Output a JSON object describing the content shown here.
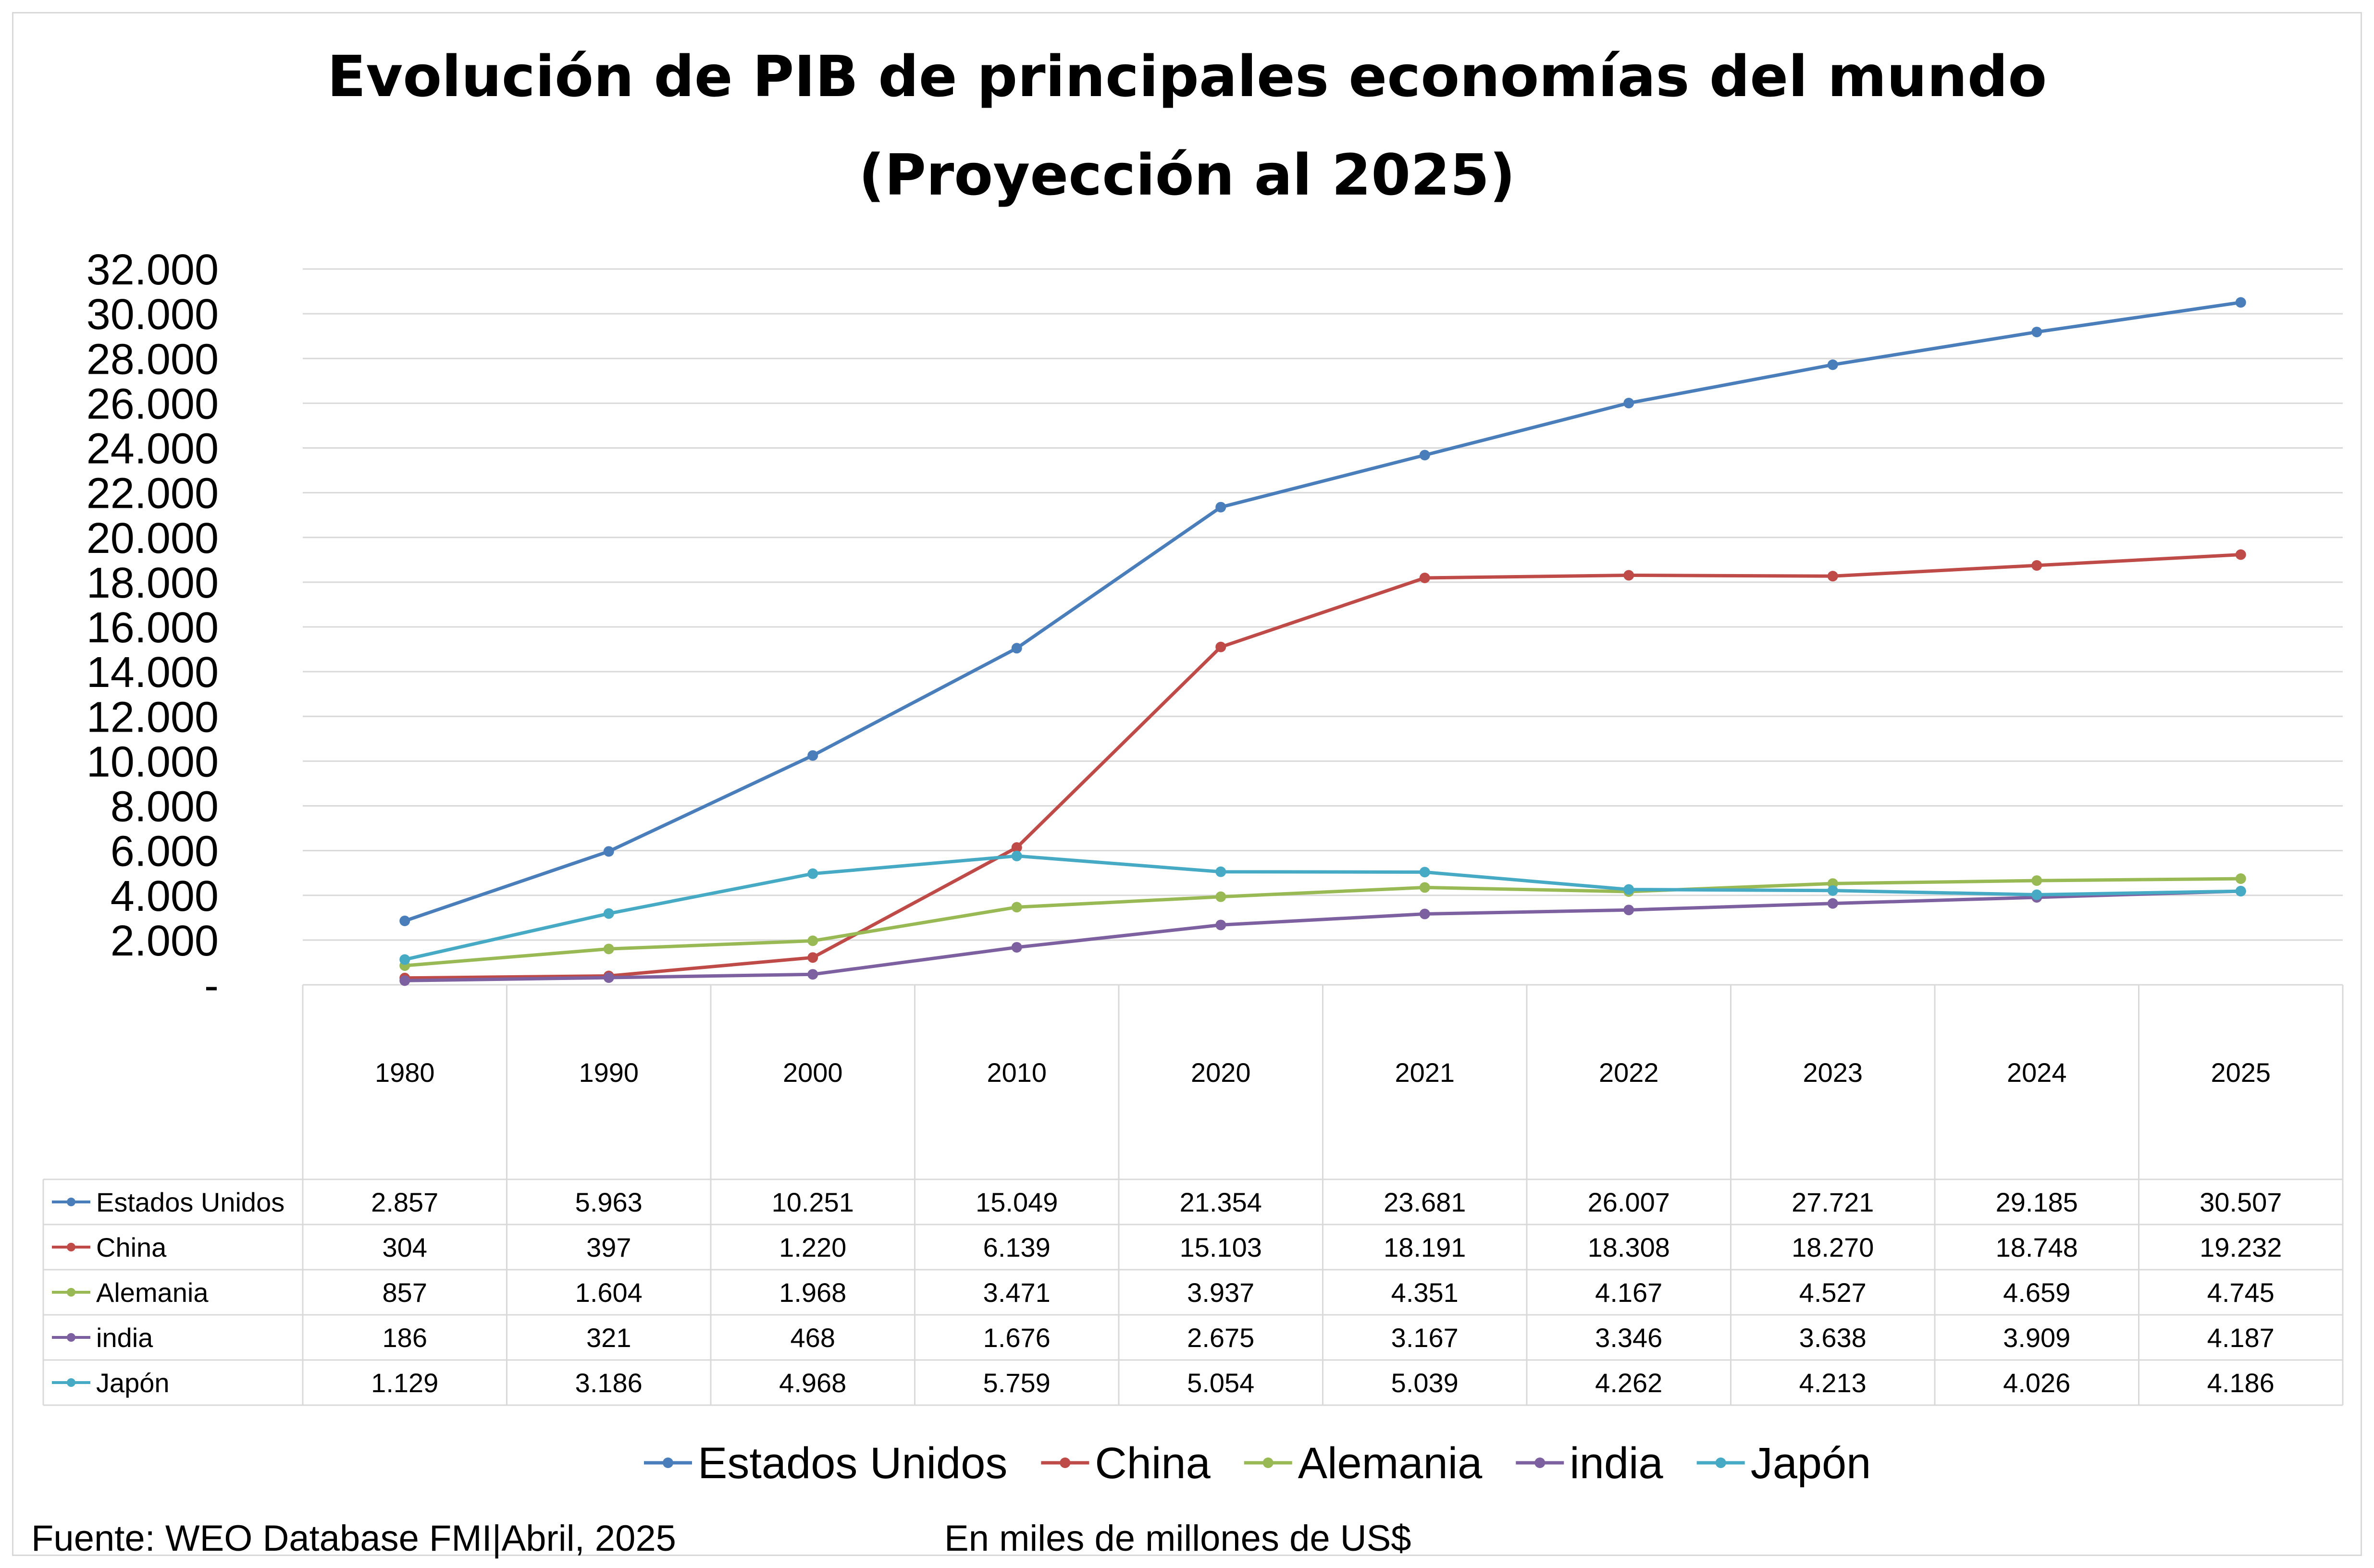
{
  "chart_data": {
    "type": "line",
    "title": "Evolución de PIB de principales economías del mundo",
    "subtitle": "(Proyección al 2025)",
    "categories": [
      "1980",
      "1990",
      "2000",
      "2010",
      "2020",
      "2021",
      "2022",
      "2023",
      "2024",
      "2025"
    ],
    "ylim": [
      0,
      32000
    ],
    "ytick_values": [
      0,
      2000,
      4000,
      6000,
      8000,
      10000,
      12000,
      14000,
      16000,
      18000,
      20000,
      22000,
      24000,
      26000,
      28000,
      30000,
      32000
    ],
    "ytick_labels": [
      "-",
      "2.000",
      "4.000",
      "6.000",
      "8.000",
      "10.000",
      "12.000",
      "14.000",
      "16.000",
      "18.000",
      "20.000",
      "22.000",
      "24.000",
      "26.000",
      "28.000",
      "30.000",
      "32.000"
    ],
    "grid": true,
    "legend": "bottom",
    "data_table": true,
    "series": [
      {
        "name": "Estados Unidos",
        "color": "#4a7ebb",
        "values": [
          2857,
          5963,
          10251,
          15049,
          21354,
          23681,
          26007,
          27721,
          29185,
          30507
        ],
        "labels": [
          "2.857",
          "5.963",
          "10.251",
          "15.049",
          "21.354",
          "23.681",
          "26.007",
          "27.721",
          "29.185",
          "30.507"
        ]
      },
      {
        "name": "China",
        "color": "#be4b48",
        "values": [
          304,
          397,
          1220,
          6139,
          15103,
          18191,
          18308,
          18270,
          18748,
          19232
        ],
        "labels": [
          "304",
          "397",
          "1.220",
          "6.139",
          "15.103",
          "18.191",
          "18.308",
          "18.270",
          "18.748",
          "19.232"
        ]
      },
      {
        "name": "Alemania",
        "color": "#98b954",
        "values": [
          857,
          1604,
          1968,
          3471,
          3937,
          4351,
          4167,
          4527,
          4659,
          4745
        ],
        "labels": [
          "857",
          "1.604",
          "1.968",
          "3.471",
          "3.937",
          "4.351",
          "4.167",
          "4.527",
          "4.659",
          "4.745"
        ]
      },
      {
        "name": "india",
        "color": "#7d60a0",
        "values": [
          186,
          321,
          468,
          1676,
          2675,
          3167,
          3346,
          3638,
          3909,
          4187
        ],
        "labels": [
          "186",
          "321",
          "468",
          "1.676",
          "2.675",
          "3.167",
          "3.346",
          "3.638",
          "3.909",
          "4.187"
        ]
      },
      {
        "name": "Japón",
        "color": "#46aac5",
        "values": [
          1129,
          3186,
          4968,
          5759,
          5054,
          5039,
          4262,
          4213,
          4026,
          4186
        ],
        "labels": [
          "1.129",
          "3.186",
          "4.968",
          "5.759",
          "5.054",
          "5.039",
          "4.262",
          "4.213",
          "4.026",
          "4.186"
        ]
      }
    ]
  },
  "footer": {
    "source": "Fuente: WEO Database FMI|Abril, 2025",
    "units": "En miles de millones de US$"
  }
}
